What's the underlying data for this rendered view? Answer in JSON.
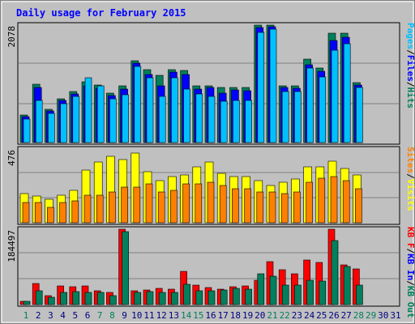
{
  "chart_data": {
    "type": "bar",
    "title": "Daily usage for February 2015",
    "colors": {
      "background": "#C0C0C0",
      "hits": "#00805C",
      "files": "#0000FF",
      "pages": "#00C0FF",
      "visits": "#FFFF00",
      "sites": "#FF8000",
      "kb_in": "#FF0000",
      "kb_out": "#00805C",
      "title": "#0000FF",
      "day_label_default": "#000080",
      "day_label_weekend": "#00805C"
    },
    "categories": [
      "1",
      "2",
      "3",
      "4",
      "5",
      "6",
      "7",
      "8",
      "9",
      "10",
      "11",
      "12",
      "13",
      "14",
      "15",
      "16",
      "17",
      "18",
      "19",
      "20",
      "21",
      "22",
      "23",
      "24",
      "25",
      "26",
      "27",
      "28",
      "29",
      "30",
      "31"
    ],
    "weekend_days": [
      1,
      7,
      8,
      14,
      15,
      21,
      22,
      28,
      29
    ],
    "panels": [
      {
        "id": "hits_files_pages",
        "max_label": "2078",
        "ylim": [
          0,
          2078
        ],
        "axis_labels": [
          {
            "text": "Pages",
            "color": "#00C0FF"
          },
          {
            "text": "/",
            "color": "#000000"
          },
          {
            "text": "Files",
            "color": "#0000FF"
          },
          {
            "text": "/",
            "color": "#000000"
          },
          {
            "text": "Hits",
            "color": "#00805C"
          }
        ],
        "series": [
          {
            "name": "Hits",
            "values": [
              490,
              1030,
              590,
              780,
              910,
              1080,
              1020,
              880,
              1010,
              1450,
              1290,
              1190,
              1290,
              1280,
              1010,
              1010,
              970,
              970,
              970,
              2078,
              2078,
              1000,
              1000,
              1470,
              1320,
              1940,
              1940,
              1060,
              null,
              null,
              null
            ]
          },
          {
            "name": "Files",
            "values": [
              460,
              980,
              560,
              740,
              860,
              1000,
              960,
              830,
              950,
              1410,
              1200,
              1000,
              1240,
              1200,
              940,
              970,
              880,
              930,
              920,
              2030,
              2050,
              970,
              960,
              1370,
              1260,
              1810,
              1860,
              1020,
              null,
              null,
              null
            ]
          },
          {
            "name": "Pages",
            "values": [
              420,
              740,
              520,
              690,
              820,
              1150,
              1000,
              780,
              840,
              1340,
              1140,
              820,
              1140,
              940,
              860,
              810,
              730,
              740,
              740,
              1950,
              2000,
              910,
              900,
              1320,
              1160,
              1640,
              1750,
              970,
              null,
              null,
              null
            ]
          }
        ]
      },
      {
        "id": "visits_sites",
        "max_label": "476",
        "ylim": [
          0,
          476
        ],
        "axis_labels": [
          {
            "text": "Sites",
            "color": "#FF8000"
          },
          {
            "text": "/",
            "color": "#000000"
          },
          {
            "text": "Visits",
            "color": "#FFFF00"
          }
        ],
        "series": [
          {
            "name": "Visits",
            "values": [
              190,
              170,
              150,
              180,
              210,
              340,
              390,
              430,
              410,
              450,
              330,
              270,
              300,
              310,
              360,
              390,
              320,
              300,
              300,
              270,
              240,
              260,
              280,
              360,
              360,
              400,
              350,
              310,
              null,
              null,
              null
            ]
          },
          {
            "name": "Sites",
            "values": [
              130,
              130,
              100,
              130,
              140,
              180,
              180,
              200,
              230,
              230,
              250,
              200,
              210,
              250,
              250,
              260,
              240,
              220,
              220,
              200,
              200,
              190,
              200,
              260,
              290,
              300,
              270,
              220,
              null,
              null,
              null
            ]
          }
        ]
      },
      {
        "id": "kbin_kbout",
        "max_label": "184497",
        "ylim": [
          0,
          184497
        ],
        "axis_labels": [
          {
            "text": "KB F",
            "color": "#FF0000"
          },
          {
            "text": "/",
            "color": "#000000"
          },
          {
            "text": "KB In",
            "color": "#0000FF"
          },
          {
            "text": "/",
            "color": "#000000"
          },
          {
            "text": "KB Out",
            "color": "#00805C"
          }
        ],
        "series": [
          {
            "name": "KB F",
            "values": [
              7000,
              52000,
              22000,
              46000,
              43000,
              45000,
              33000,
              30000,
              184497,
              33000,
              35000,
              39000,
              38000,
              81000,
              47000,
              41000,
              38000,
              43000,
              46000,
              60000,
              106000,
              86000,
              75000,
              109000,
              104000,
              184497,
              98000,
              88000,
              null,
              null,
              null
            ]
          },
          {
            "name": "KB Out",
            "values": [
              7000,
              33000,
              18000,
              30000,
              32000,
              29000,
              30000,
              22000,
              178000,
              30000,
              31000,
              30000,
              30000,
              50000,
              34000,
              34000,
              36000,
              40000,
              38000,
              76000,
              70000,
              47000,
              48000,
              60000,
              58000,
              156000,
              93000,
              47000,
              null,
              null,
              null
            ]
          }
        ]
      }
    ]
  }
}
